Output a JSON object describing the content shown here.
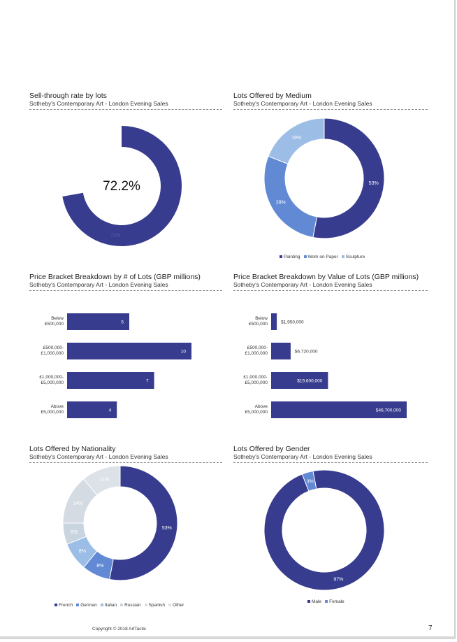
{
  "colors": {
    "navy": "#373c8e",
    "blue": "#6189d4",
    "light": "#9bbde6",
    "pale": "#c9d4e1",
    "grey": "#d5dbe3",
    "other": "#dde2e8"
  },
  "footer": {
    "copyright": "Copyright © 2018 ArtTactic",
    "page": "7"
  },
  "chart_data": [
    {
      "id": "sell-through",
      "type": "pie",
      "title": "Sell-through rate by lots",
      "subtitle": "Sotheby's Contemporary Art - London Evening Sales",
      "center_label": "72.2%",
      "value": 72.2,
      "slice_label": "72%"
    },
    {
      "id": "medium",
      "type": "pie",
      "title": "Lots Offered by Medium",
      "subtitle": "Sotheby's Contemporary Art - London Evening Sales",
      "categories": [
        "Painting",
        "Work on Paper",
        "Sculpture"
      ],
      "values": [
        53,
        28,
        19
      ],
      "labels": [
        "53%",
        "28%",
        "19%"
      ]
    },
    {
      "id": "bracket-lots",
      "type": "bar",
      "title": "Price Bracket Breakdown by # of Lots (GBP millions)",
      "subtitle": "Sotheby's Contemporary Art - London Evening Sales",
      "categories": [
        [
          "Below",
          "£500,000"
        ],
        [
          "£500,000-",
          "£1,000,000"
        ],
        [
          "£1,000,000-",
          "£5,000,000"
        ],
        [
          "Above",
          "£5,000,000"
        ]
      ],
      "values": [
        5,
        10,
        7,
        4
      ],
      "labels": [
        "5",
        "10",
        "7",
        "4"
      ],
      "xlim": [
        0,
        10
      ]
    },
    {
      "id": "bracket-value",
      "type": "bar",
      "title": "Price Bracket Breakdown by Value of Lots (GBP millions)",
      "subtitle": "Sotheby's Contemporary Art - London Evening Sales",
      "categories": [
        [
          "Below",
          "£500,000"
        ],
        [
          "£500,000-",
          "£1,000,000"
        ],
        [
          "£1,000,000-",
          "£5,000,000"
        ],
        [
          "Above",
          "£5,000,000"
        ]
      ],
      "values": [
        1950000,
        6720000,
        19600000,
        46700000
      ],
      "labels": [
        "$1,950,000",
        "$6,720,000",
        "$19,600,000",
        "$46,700,000"
      ],
      "xlim": [
        0,
        46700000
      ]
    },
    {
      "id": "nationality",
      "type": "pie",
      "title": "Lots Offered by Nationality",
      "subtitle": "Sotheby's Contemporary Art - London Evening Sales",
      "categories": [
        "French",
        "German",
        "Italian",
        "Russian",
        "Spanish",
        "Other"
      ],
      "values": [
        53,
        8,
        8,
        6,
        14,
        11
      ],
      "labels": [
        "53%",
        "8%",
        "8%",
        "6%",
        "14%",
        "11%"
      ]
    },
    {
      "id": "gender",
      "type": "pie",
      "title": "Lots Offered by Gender",
      "subtitle": "Sotheby's Contemporary Art - London Evening Sales",
      "categories": [
        "Male",
        "Female"
      ],
      "values": [
        97,
        3
      ],
      "labels": [
        "97%",
        "3%"
      ]
    }
  ]
}
